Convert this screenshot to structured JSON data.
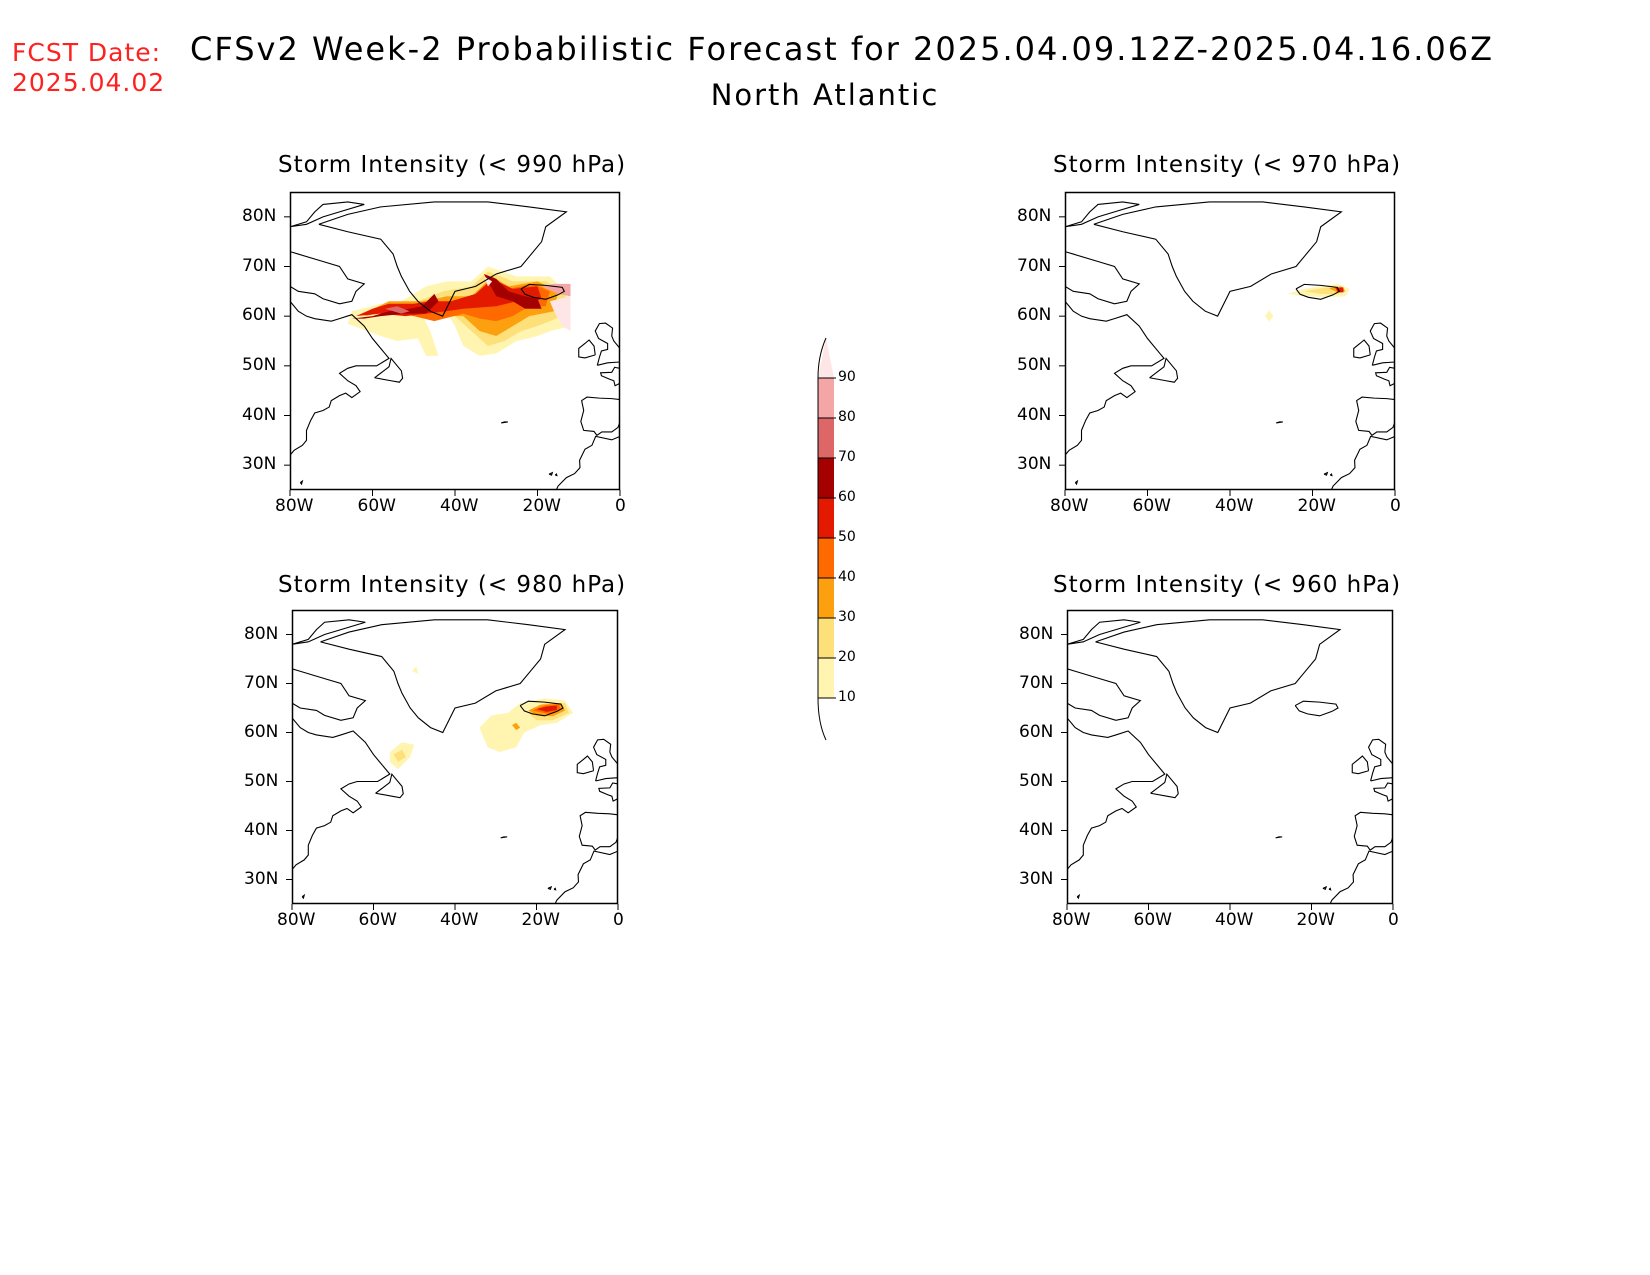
{
  "header": {
    "fcst_label": "FCST Date:",
    "fcst_date": "2025.04.02",
    "title": "CFSv2 Week-2 Probabilistic Forecast for 2025.04.09.12Z-2025.04.16.06Z",
    "subtitle": "North Atlantic"
  },
  "axes": {
    "lat_labels": [
      "80N",
      "70N",
      "60N",
      "50N",
      "40N",
      "30N"
    ],
    "lon_labels": [
      "80W",
      "60W",
      "40W",
      "20W",
      "0"
    ]
  },
  "panels": [
    {
      "id": "p990",
      "title": "Storm Intensity (< 990 hPa)"
    },
    {
      "id": "p970",
      "title": "Storm Intensity (< 970 hPa)"
    },
    {
      "id": "p980",
      "title": "Storm Intensity (< 980 hPa)"
    },
    {
      "id": "p960",
      "title": "Storm Intensity (< 960 hPa)"
    }
  ],
  "colorbar": {
    "levels": [
      "10",
      "20",
      "30",
      "40",
      "50",
      "60",
      "70",
      "80",
      "90"
    ],
    "colors": [
      "#fff5b0",
      "#fde07a",
      "#fda00f",
      "#fe6a00",
      "#e31a00",
      "#a50000",
      "#dd6666",
      "#f4a5a5",
      "#ffe6e6"
    ]
  }
}
